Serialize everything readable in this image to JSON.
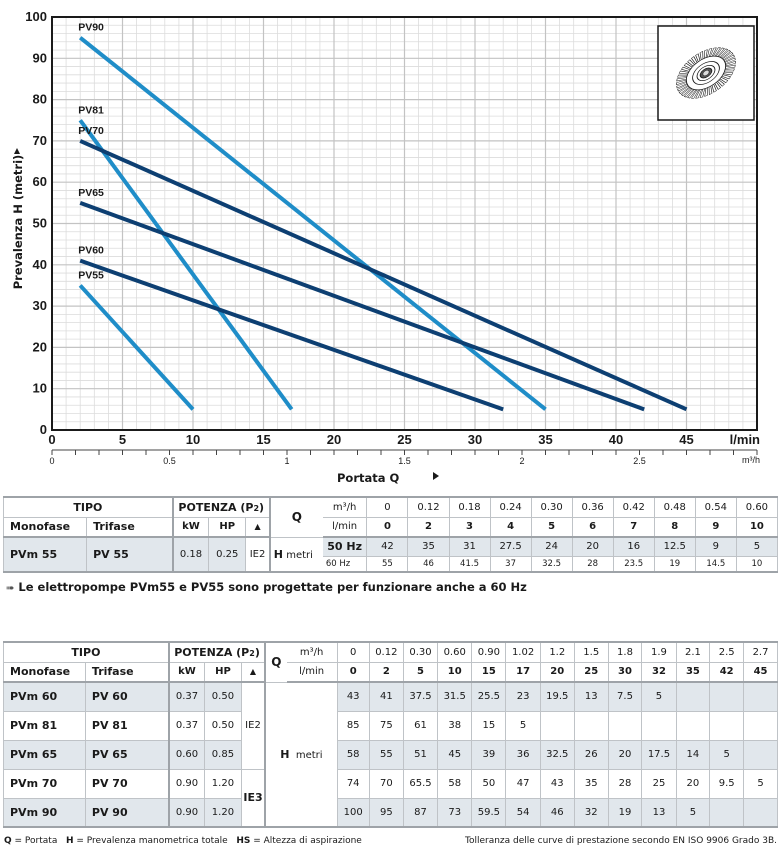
{
  "chart_data": {
    "type": "line",
    "title": "",
    "xlabel": "Portata Q",
    "ylabel": "Prevalenza H (metri)",
    "x_unit_primary": "l/min",
    "x_unit_secondary": "m³/h",
    "xlim": [
      0,
      50
    ],
    "ylim": [
      0,
      100
    ],
    "x_ticks": [
      0,
      5,
      10,
      15,
      20,
      25,
      30,
      35,
      40,
      45
    ],
    "x_tick_labels": [
      "0",
      "5",
      "10",
      "15",
      "20",
      "25",
      "30",
      "35",
      "40",
      "45"
    ],
    "y_ticks": [
      0,
      10,
      20,
      30,
      40,
      50,
      60,
      70,
      80,
      90,
      100
    ],
    "y_tick_labels": [
      "0",
      "10",
      "20",
      "30",
      "40",
      "50",
      "60",
      "70",
      "80",
      "90",
      "100"
    ],
    "secondary_x_ticks": [
      0,
      0.5,
      1,
      1.5,
      2,
      2.5
    ],
    "secondary_x_tick_labels": [
      "0",
      "0.5",
      "1",
      "1.5",
      "2",
      "2.5"
    ],
    "grid": true,
    "series": [
      {
        "name": "PV90",
        "color": "#1f8dc8",
        "x": [
          2,
          35
        ],
        "y": [
          95,
          5
        ]
      },
      {
        "name": "PV81",
        "color": "#1f8dc8",
        "x": [
          2,
          17
        ],
        "y": [
          75,
          5
        ]
      },
      {
        "name": "PV70",
        "color": "#0d3f72",
        "x": [
          2,
          45
        ],
        "y": [
          70,
          5
        ]
      },
      {
        "name": "PV65",
        "color": "#0d3f72",
        "x": [
          2,
          42
        ],
        "y": [
          55,
          5
        ]
      },
      {
        "name": "PV60",
        "color": "#0d3f72",
        "x": [
          2,
          32
        ],
        "y": [
          41,
          5
        ]
      },
      {
        "name": "PV55",
        "color": "#1f8dc8",
        "x": [
          2,
          10
        ],
        "y": [
          35,
          5
        ]
      }
    ]
  },
  "impeller_icon": "impeller-icon",
  "table1": {
    "hdr_tipo": "TIPO",
    "hdr_potenza": "POTENZA (P2)",
    "hdr_q": "Q",
    "hdr_monofase": "Monofase",
    "hdr_trifase": "Trifase",
    "hdr_kw": "kW",
    "hdr_hp": "HP",
    "hdr_triangle": "▲",
    "unit_m3h": "m³/h",
    "unit_lmin": "l/min",
    "m3h": [
      "0",
      "0.12",
      "0.18",
      "0.24",
      "0.30",
      "0.36",
      "0.42",
      "0.48",
      "0.54",
      "0.60"
    ],
    "lmin": [
      "0",
      "2",
      "3",
      "4",
      "5",
      "6",
      "7",
      "8",
      "9",
      "10"
    ],
    "row": {
      "monofase": "PVm 55",
      "trifase": "PV 55",
      "kw": "0.18",
      "hp": "0.25",
      "ie": "IE2",
      "h_label": "H",
      "h_unit": "metri",
      "hz50": "50 Hz",
      "hz60": "60 Hz",
      "h50": [
        "42",
        "35",
        "31",
        "27.5",
        "24",
        "20",
        "16",
        "12.5",
        "9",
        "5"
      ],
      "h60": [
        "55",
        "46",
        "41.5",
        "37",
        "32.5",
        "28",
        "23.5",
        "19",
        "14.5",
        "10"
      ]
    }
  },
  "note": {
    "arrow": "➠",
    "text": "Le elettropompe PVm55 e PV55 sono progettate per funzionare anche a 60 Hz"
  },
  "table2": {
    "hdr_tipo": "TIPO",
    "hdr_potenza": "POTENZA (P2)",
    "hdr_q": "Q",
    "hdr_monofase": "Monofase",
    "hdr_trifase": "Trifase",
    "hdr_kw": "kW",
    "hdr_hp": "HP",
    "hdr_triangle": "▲",
    "unit_m3h": "m³/h",
    "unit_lmin": "l/min",
    "h_label": "H",
    "h_unit": "metri",
    "ie2": "IE2",
    "ie3": "IE3",
    "m3h": [
      "0",
      "0.12",
      "0.30",
      "0.60",
      "0.90",
      "1.02",
      "1.2",
      "1.5",
      "1.8",
      "1.9",
      "2.1",
      "2.5",
      "2.7"
    ],
    "lmin": [
      "0",
      "2",
      "5",
      "10",
      "15",
      "17",
      "20",
      "25",
      "30",
      "32",
      "35",
      "42",
      "45"
    ],
    "rows": [
      {
        "monofase": "PVm 60",
        "trifase": "PV 60",
        "kw": "0.37",
        "hp": "0.50",
        "h": [
          "43",
          "41",
          "37.5",
          "31.5",
          "25.5",
          "23",
          "19.5",
          "13",
          "7.5",
          "5",
          "",
          "",
          ""
        ]
      },
      {
        "monofase": "PVm 81",
        "trifase": "PV 81",
        "kw": "0.37",
        "hp": "0.50",
        "h": [
          "85",
          "75",
          "61",
          "38",
          "15",
          "5",
          "",
          "",
          "",
          "",
          "",
          "",
          ""
        ]
      },
      {
        "monofase": "PVm 65",
        "trifase": "PV 65",
        "kw": "0.60",
        "hp": "0.85",
        "h": [
          "58",
          "55",
          "51",
          "45",
          "39",
          "36",
          "32.5",
          "26",
          "20",
          "17.5",
          "14",
          "5",
          ""
        ]
      },
      {
        "monofase": "PVm 70",
        "trifase": "PV 70",
        "kw": "0.90",
        "hp": "1.20",
        "h": [
          "74",
          "70",
          "65.5",
          "58",
          "50",
          "47",
          "43",
          "35",
          "28",
          "25",
          "20",
          "9.5",
          "5"
        ]
      },
      {
        "monofase": "PVm 90",
        "trifase": "PV 90",
        "kw": "0.90",
        "hp": "1.20",
        "h": [
          "100",
          "95",
          "87",
          "73",
          "59.5",
          "54",
          "46",
          "32",
          "19",
          "13",
          "5",
          "",
          ""
        ]
      }
    ]
  },
  "footer": {
    "q_key": "Q",
    "q_text": "= Portata",
    "h_key": "H",
    "h_text": "= Prevalenza manometrica totale",
    "hs_key": "HS",
    "hs_text": "= Altezza di aspirazione",
    "tolerance": "Tolleranza delle curve di prestazione secondo EN ISO 9906 Grado 3B."
  }
}
